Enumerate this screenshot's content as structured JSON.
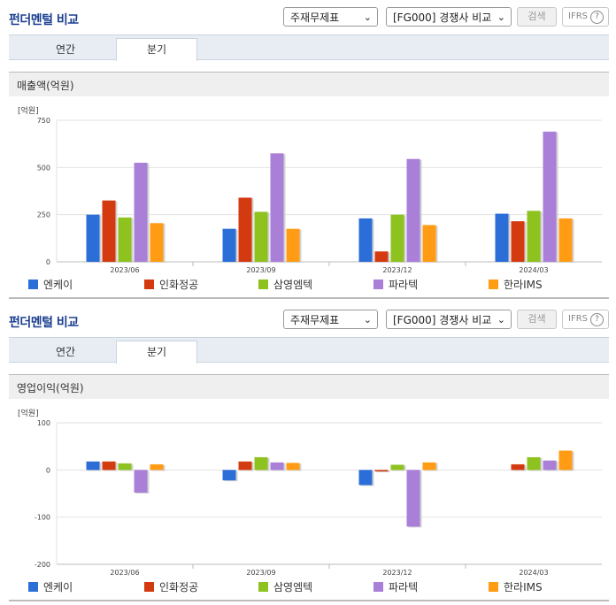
{
  "panels": [
    {
      "title": "펀더멘털 비교",
      "select1": "주재무제표",
      "select2": "[FG000] 경쟁사 비교",
      "search_btn": "검색",
      "ifrs_btn": "IFRS",
      "help_icon_text": "?",
      "tabs": [
        "연간",
        "분기"
      ],
      "active_tab": 1,
      "section_label": "매출액(억원)",
      "unit": "[억원]",
      "chart_data": {
        "type": "bar",
        "categories": [
          "2023/06",
          "2023/09",
          "2023/12",
          "2024/03"
        ],
        "ylim": [
          0,
          750
        ],
        "yticks": [
          0,
          250,
          500,
          750
        ],
        "ytick_labels": [
          "0",
          "250",
          "500",
          "750"
        ],
        "series": [
          {
            "name": "엔케이",
            "color": "#2b6ed8",
            "values": [
              250,
              175,
              230,
              255
            ]
          },
          {
            "name": "인화정공",
            "color": "#d43a10",
            "values": [
              325,
              340,
              55,
              215
            ]
          },
          {
            "name": "삼영엠텍",
            "color": "#8dc21f",
            "values": [
              235,
              265,
              250,
              270
            ]
          },
          {
            "name": "파라텍",
            "color": "#a97fd8",
            "values": [
              525,
              575,
              545,
              690
            ]
          },
          {
            "name": "한라IMS",
            "color": "#ff9c14",
            "values": [
              205,
              175,
              195,
              230
            ]
          }
        ]
      }
    },
    {
      "title": "펀더멘털 비교",
      "select1": "주재무제표",
      "select2": "[FG000] 경쟁사 비교",
      "search_btn": "검색",
      "ifrs_btn": "IFRS",
      "help_icon_text": "?",
      "tabs": [
        "연간",
        "분기"
      ],
      "active_tab": 1,
      "section_label": "영업이익(억원)",
      "unit": "[억원]",
      "chart_data": {
        "type": "bar",
        "categories": [
          "2023/06",
          "2023/09",
          "2023/12",
          "2024/03"
        ],
        "ylim": [
          -200,
          100
        ],
        "yticks": [
          -200,
          -100,
          0,
          100
        ],
        "ytick_labels": [
          "-200",
          "-100",
          "0",
          "100"
        ],
        "series": [
          {
            "name": "엔케이",
            "color": "#2b6ed8",
            "values": [
              18,
              -22,
              -32,
              0
            ]
          },
          {
            "name": "인화정공",
            "color": "#d43a10",
            "values": [
              18,
              18,
              -3,
              12
            ]
          },
          {
            "name": "삼영엠텍",
            "color": "#8dc21f",
            "values": [
              14,
              27,
              11,
              27
            ]
          },
          {
            "name": "파라텍",
            "color": "#a97fd8",
            "values": [
              -48,
              16,
              -120,
              20
            ]
          },
          {
            "name": "한라IMS",
            "color": "#ff9c14",
            "values": [
              12,
              15,
              16,
              41
            ]
          }
        ]
      }
    }
  ]
}
